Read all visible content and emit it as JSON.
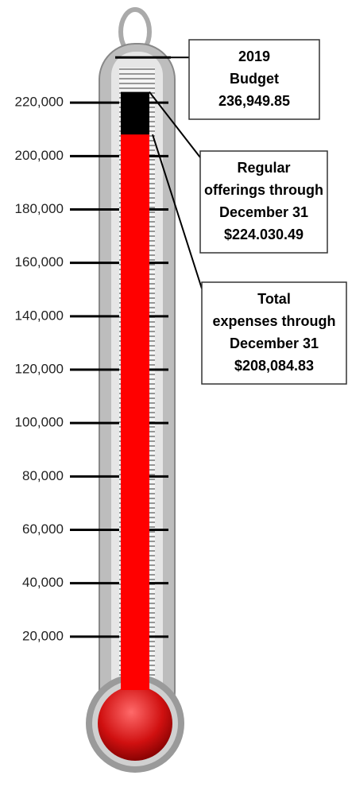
{
  "chart_data": {
    "type": "thermometer",
    "values": [
      236949.85,
      224030.49,
      208084.83
    ],
    "value_labels": [
      [
        "2019",
        "Budget",
        "236,949.85"
      ],
      [
        "Regular",
        "offerings through",
        "December 31",
        "$224.030.49"
      ],
      [
        "Total",
        "expenses through",
        "December 31",
        "$208,084.83"
      ]
    ],
    "colors": [
      "#000000",
      "#000000",
      "#ff0000"
    ],
    "ylim": [
      0,
      240000
    ],
    "yticks": [
      {
        "value": 20000,
        "label": "20,000"
      },
      {
        "value": 40000,
        "label": "40,000"
      },
      {
        "value": 60000,
        "label": "60,000"
      },
      {
        "value": 80000,
        "label": "80,000"
      },
      {
        "value": 100000,
        "label": "100,000"
      },
      {
        "value": 120000,
        "label": "120,000"
      },
      {
        "value": 140000,
        "label": "140,000"
      },
      {
        "value": 160000,
        "label": "160,000"
      },
      {
        "value": 180000,
        "label": "180,000"
      },
      {
        "value": 200000,
        "label": "200,000"
      },
      {
        "value": 220000,
        "label": "220,000"
      }
    ]
  }
}
